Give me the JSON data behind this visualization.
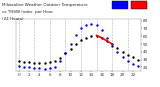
{
  "title": "Milwaukee Weather Outdoor Temperature vs THSW Index per Hour (24 Hours)",
  "hours": [
    0,
    1,
    2,
    3,
    4,
    5,
    6,
    7,
    8,
    9,
    10,
    11,
    12,
    13,
    14,
    15,
    16,
    17,
    18,
    19,
    20,
    21,
    22,
    23
  ],
  "outdoor_temp": [
    28,
    27,
    27,
    26,
    26,
    26,
    27,
    28,
    32,
    38,
    44,
    50,
    55,
    58,
    60,
    61,
    58,
    54,
    50,
    45,
    40,
    36,
    33,
    30
  ],
  "thsw": [
    22,
    21,
    20,
    19,
    19,
    18,
    19,
    21,
    28,
    38,
    50,
    62,
    70,
    74,
    76,
    75,
    68,
    58,
    48,
    40,
    33,
    28,
    25,
    22
  ],
  "heat_index": [
    null,
    null,
    null,
    null,
    null,
    null,
    null,
    null,
    null,
    null,
    null,
    null,
    null,
    null,
    null,
    61,
    58,
    54,
    50,
    null,
    null,
    null,
    null,
    null
  ],
  "bg_color": "#ffffff",
  "temp_color": "#000000",
  "thsw_color": "#0000ff",
  "heat_color": "#ff0000",
  "ylim": [
    15,
    82
  ],
  "ytick_vals": [
    20,
    30,
    40,
    50,
    60,
    70,
    80
  ],
  "xtick_vals": [
    0,
    2,
    4,
    6,
    8,
    10,
    12,
    14,
    16,
    18,
    20,
    22
  ],
  "vgrid_at": [
    0,
    3,
    6,
    9,
    12,
    15,
    18,
    21
  ],
  "legend_blue": "#0000ff",
  "legend_red": "#ff0000"
}
